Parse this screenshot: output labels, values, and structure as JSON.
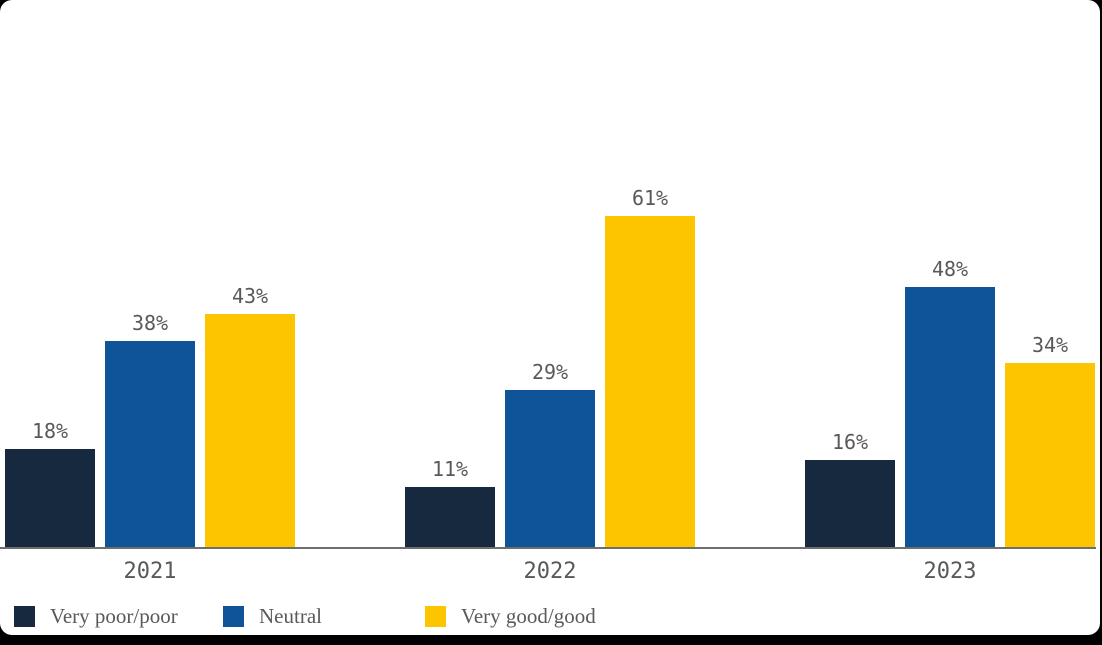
{
  "window": {
    "background_color": "#000000",
    "card_background_color": "#ffffff"
  },
  "chart_data": {
    "type": "bar",
    "title": "",
    "categories": [
      "2021",
      "2022",
      "2023"
    ],
    "series": [
      {
        "name": "Very poor/poor",
        "color": "#17293E",
        "values": [
          18,
          11,
          16
        ]
      },
      {
        "name": "Neutral",
        "color": "#0F5499",
        "values": [
          38,
          29,
          48
        ]
      },
      {
        "name": "Very good/good",
        "color": "#FDC500",
        "values": [
          43,
          61,
          34
        ]
      }
    ],
    "value_suffix": "%",
    "data_labels": true,
    "y_axis_visible": false,
    "axis_line_color": "#6E6E6E",
    "label_color": "#595959",
    "legend_position": "bottom-left",
    "ylim": [
      0,
      100
    ]
  }
}
